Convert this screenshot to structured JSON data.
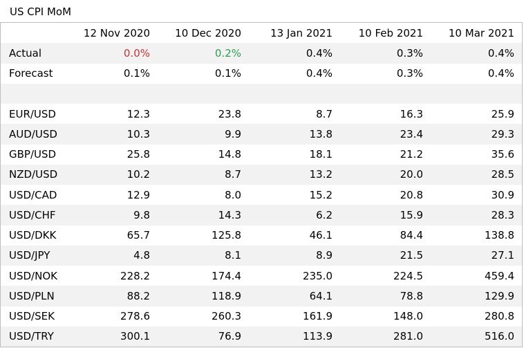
{
  "title": "US CPI MoM",
  "dates": [
    "12 Nov 2020",
    "10 Dec 2020",
    "13 Jan 2021",
    "10 Feb 2021",
    "10 Mar 2021"
  ],
  "actual": {
    "label": "Actual",
    "values": [
      "0.0%",
      "0.2%",
      "0.4%",
      "0.3%",
      "0.4%"
    ]
  },
  "forecast": {
    "label": "Forecast",
    "values": [
      "0.1%",
      "0.1%",
      "0.4%",
      "0.3%",
      "0.4%"
    ]
  },
  "colors": {
    "negative": "#cc3333",
    "positive": "#2e9e4f",
    "row_shade": "#f2f2f2",
    "border": "#bdbdbd"
  },
  "pairs": [
    {
      "label": "EUR/USD",
      "values": [
        "12.3",
        "23.8",
        "8.7",
        "16.3",
        "25.9"
      ]
    },
    {
      "label": "AUD/USD",
      "values": [
        "10.3",
        "9.9",
        "13.8",
        "23.4",
        "29.3"
      ]
    },
    {
      "label": "GBP/USD",
      "values": [
        "25.8",
        "14.8",
        "18.1",
        "21.2",
        "35.6"
      ]
    },
    {
      "label": "NZD/USD",
      "values": [
        "10.2",
        "8.7",
        "13.2",
        "20.0",
        "28.5"
      ]
    },
    {
      "label": "USD/CAD",
      "values": [
        "12.9",
        "8.0",
        "15.2",
        "20.8",
        "30.9"
      ]
    },
    {
      "label": "USD/CHF",
      "values": [
        "9.8",
        "14.3",
        "6.2",
        "15.9",
        "28.3"
      ]
    },
    {
      "label": "USD/DKK",
      "values": [
        "65.7",
        "125.8",
        "46.1",
        "84.4",
        "138.8"
      ]
    },
    {
      "label": "USD/JPY",
      "values": [
        "4.8",
        "8.1",
        "8.9",
        "21.5",
        "27.1"
      ]
    },
    {
      "label": "USD/NOK",
      "values": [
        "228.2",
        "174.4",
        "235.0",
        "224.5",
        "459.4"
      ]
    },
    {
      "label": "USD/PLN",
      "values": [
        "88.2",
        "118.9",
        "64.1",
        "78.8",
        "129.9"
      ]
    },
    {
      "label": "USD/SEK",
      "values": [
        "278.6",
        "260.3",
        "161.9",
        "148.0",
        "280.8"
      ]
    },
    {
      "label": "USD/TRY",
      "values": [
        "300.1",
        "76.9",
        "113.9",
        "281.0",
        "516.0"
      ]
    }
  ]
}
